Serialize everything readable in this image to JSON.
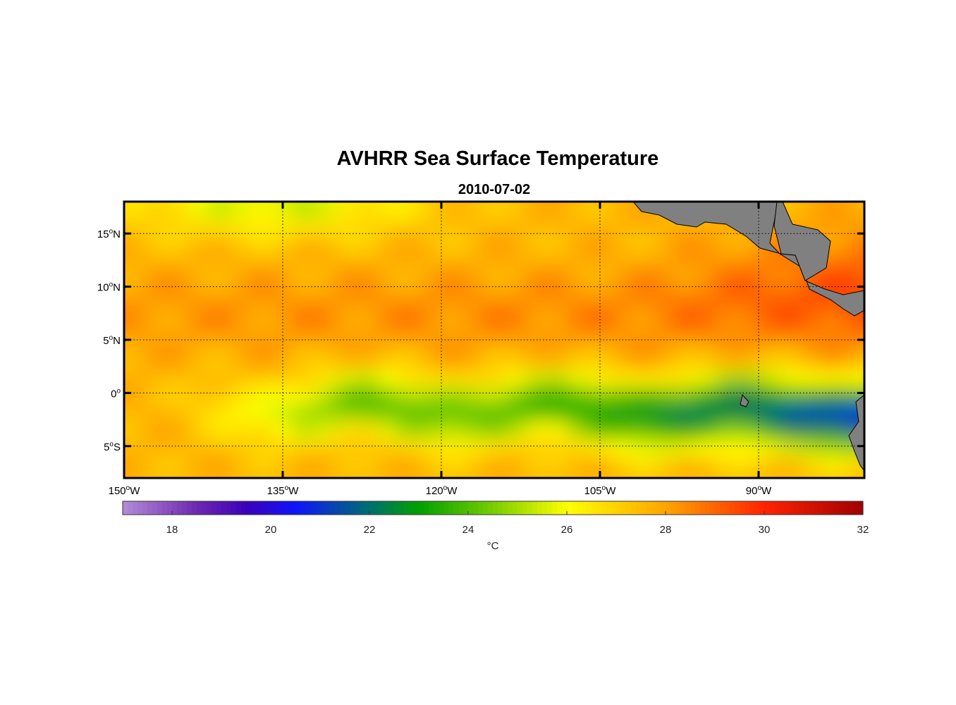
{
  "figure": {
    "title": "AVHRR Sea Surface Temperature",
    "subtitle": "2010-07-02"
  },
  "map": {
    "lon_range": [
      -150,
      -80
    ],
    "lat_range": [
      -8,
      18
    ],
    "lon_ticks": [
      {
        "value": -150,
        "num": "150",
        "hemi": "W"
      },
      {
        "value": -135,
        "num": "135",
        "hemi": "W"
      },
      {
        "value": -120,
        "num": "120",
        "hemi": "W"
      },
      {
        "value": -105,
        "num": "105",
        "hemi": "W"
      },
      {
        "value": -90,
        "num": "90",
        "hemi": "W"
      }
    ],
    "lat_ticks": [
      {
        "value": 15,
        "num": "15",
        "hemi": "N"
      },
      {
        "value": 10,
        "num": "10",
        "hemi": "N"
      },
      {
        "value": 5,
        "num": "5",
        "hemi": "N"
      },
      {
        "value": 0,
        "num": "0",
        "hemi": ""
      },
      {
        "value": -5,
        "num": "5",
        "hemi": "S"
      }
    ],
    "grid": "dotted",
    "land_color": "#808080",
    "field": "sea_surface_temperature"
  },
  "colorbar": {
    "range": [
      17,
      32
    ],
    "ticks": [
      18,
      20,
      22,
      24,
      26,
      28,
      30,
      32
    ],
    "unit": "°C",
    "colormap": "purple-blue-green-yellow-orange-red"
  }
}
